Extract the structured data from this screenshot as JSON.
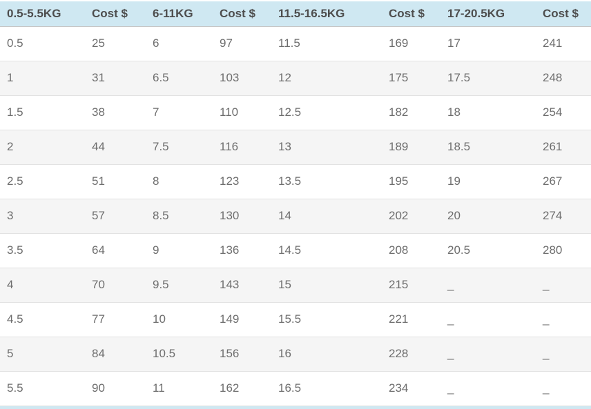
{
  "chart_data": {
    "type": "table",
    "columns": [
      "0.5-5.5KG",
      "Cost $",
      "6-11KG",
      "Cost $",
      "11.5-16.5KG",
      "Cost $",
      "17-20.5KG",
      "Cost $"
    ],
    "rows": [
      [
        "0.5",
        "25",
        "6",
        "97",
        "11.5",
        "169",
        "17",
        "241"
      ],
      [
        "1",
        "31",
        "6.5",
        "103",
        "12",
        "175",
        "17.5",
        "248"
      ],
      [
        "1.5",
        "38",
        "7",
        "110",
        "12.5",
        "182",
        "18",
        "254"
      ],
      [
        "2",
        "44",
        "7.5",
        "116",
        "13",
        "189",
        "18.5",
        "261"
      ],
      [
        "2.5",
        "51",
        "8",
        "123",
        "13.5",
        "195",
        "19",
        "267"
      ],
      [
        "3",
        "57",
        "8.5",
        "130",
        "14",
        "202",
        "20",
        "274"
      ],
      [
        "3.5",
        "64",
        "9",
        "136",
        "14.5",
        "208",
        "20.5",
        "280"
      ],
      [
        "4",
        "70",
        "9.5",
        "143",
        "15",
        "215",
        "_",
        "_"
      ],
      [
        "4.5",
        "77",
        "10",
        "149",
        "15.5",
        "221",
        "_",
        "_"
      ],
      [
        "5",
        "84",
        "10.5",
        "156",
        "16",
        "228",
        "_",
        "_"
      ],
      [
        "5.5",
        "90",
        "11",
        "162",
        "16.5",
        "234",
        "_",
        "_"
      ]
    ],
    "layout": {
      "legend": "none",
      "header_position": "top",
      "row_striping": "alternate"
    }
  },
  "colors": {
    "header_bg": "#cfe8f2",
    "header_text": "#4d4d4d",
    "cell_text": "#6d6d6d",
    "row_alt_bg": "#f5f5f5",
    "row_border": "#e2e2e2",
    "header_border": "#c6c6c6"
  }
}
